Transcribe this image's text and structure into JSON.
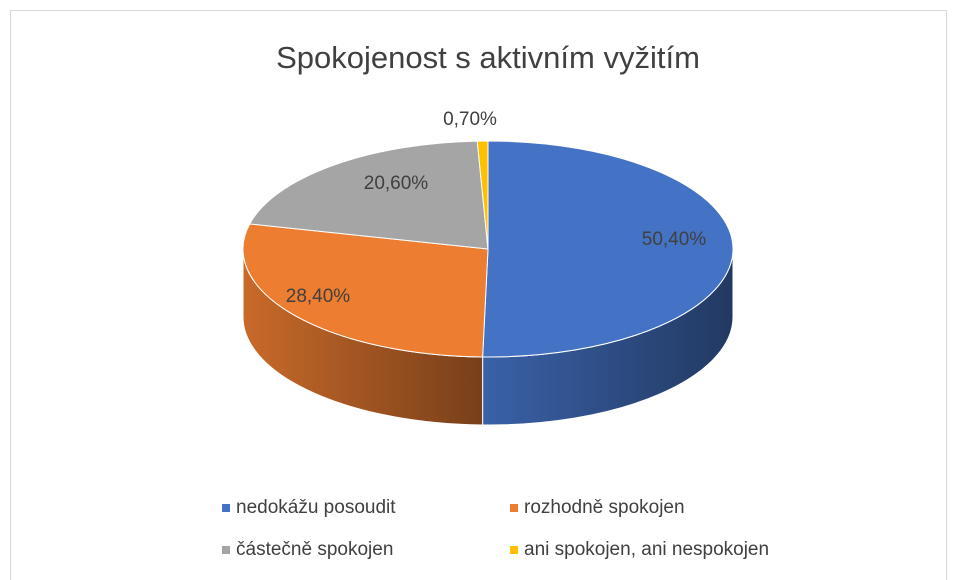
{
  "chart_data": {
    "type": "pie",
    "title": "Spokojenost s aktivním vyžitím",
    "categories": [
      "nedokážu posoudit",
      "rozhodně spokojen",
      "částečně spokojen",
      "ani spokojen, ani nespokojen"
    ],
    "values": [
      50.4,
      28.4,
      20.6,
      0.7
    ],
    "value_labels": [
      "50,40%",
      "28,40%",
      "20,60%",
      "0,70%"
    ],
    "colors": [
      "#4472c4",
      "#ed7d31",
      "#a5a5a5",
      "#ffc000"
    ],
    "legend": "bottom"
  }
}
